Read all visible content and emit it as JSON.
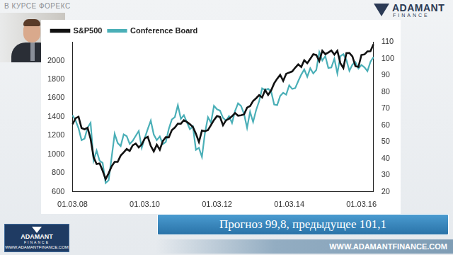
{
  "page": {
    "header": "В КУРСЕ ФОРЕКС",
    "logo_top": {
      "name": "ADAMANT",
      "sub": "FINANCE"
    },
    "logo_bottom": {
      "name": "ADAMANT",
      "sub": "FINANCE",
      "url": "WWW.ADAMANTFINANCE.COM"
    },
    "caption": "Прогноз 99,8, предыдущее 101,1",
    "url": "WWW.ADAMANTFINANCE.COM"
  },
  "chart_data": {
    "type": "line",
    "categories": [
      "01.03.08",
      null,
      null,
      null,
      null,
      null,
      null,
      null,
      null,
      null,
      null,
      null,
      null,
      null,
      null,
      null,
      null,
      null,
      null,
      null,
      null,
      null,
      null,
      null,
      "01.03.10",
      null,
      null,
      null,
      null,
      null,
      null,
      null,
      null,
      null,
      null,
      null,
      null,
      null,
      null,
      null,
      null,
      null,
      null,
      null,
      null,
      null,
      null,
      null,
      "01.03.12",
      null,
      null,
      null,
      null,
      null,
      null,
      null,
      null,
      null,
      null,
      null,
      null,
      null,
      null,
      null,
      null,
      null,
      null,
      null,
      null,
      null,
      null,
      null,
      "01.03.14",
      null,
      null,
      null,
      null,
      null,
      null,
      null,
      null,
      null,
      null,
      null,
      null,
      null,
      null,
      null,
      null,
      null,
      null,
      null,
      null,
      null,
      null,
      null,
      "01.03.16",
      null,
      null,
      null,
      null
    ],
    "series": [
      {
        "name": "S&P500",
        "color": "#111111",
        "line_style": "solid",
        "values": [
          1320,
          1385,
          1400,
          1280,
          1267,
          1283,
          1165,
          968,
          896,
          903,
          825,
          735,
          798,
          873,
          919,
          919,
          987,
          1021,
          1057,
          1036,
          1096,
          1115,
          1074,
          1104,
          1169,
          1187,
          1089,
          1031,
          1102,
          1049,
          1141,
          1183,
          1181,
          1258,
          1286,
          1327,
          1326,
          1364,
          1345,
          1321,
          1292,
          1219,
          1131,
          1253,
          1247,
          1258,
          1312,
          1366,
          1408,
          1398,
          1310,
          1362,
          1379,
          1406,
          1441,
          1412,
          1416,
          1426,
          1498,
          1515,
          1569,
          1598,
          1631,
          1606,
          1686,
          1633,
          1682,
          1757,
          1806,
          1848,
          1783,
          1859,
          1872,
          1884,
          1924,
          1960,
          1931,
          2003,
          1972,
          2018,
          2068,
          2059,
          1995,
          2105,
          2068,
          2086,
          2107,
          2063,
          2104,
          1972,
          1920,
          2079,
          2080,
          2044,
          1940,
          1932,
          2060,
          2065,
          2097,
          2099,
          2174
        ]
      },
      {
        "name": "Conference Board",
        "color": "#4aafb7",
        "line_style": "solid",
        "axis": "y2",
        "values": [
          65.9,
          62.8,
          58.1,
          51.0,
          51.9,
          58.5,
          61.4,
          38.8,
          44.7,
          38.6,
          37.4,
          25.3,
          26.9,
          40.8,
          54.8,
          49.3,
          47.4,
          54.5,
          53.4,
          48.7,
          50.6,
          53.6,
          56.5,
          46.4,
          52.3,
          57.7,
          62.7,
          54.3,
          51.0,
          53.2,
          48.6,
          49.9,
          57.8,
          63.4,
          64.8,
          72.0,
          63.8,
          66.0,
          61.7,
          57.6,
          59.2,
          45.2,
          46.4,
          40.9,
          55.2,
          64.8,
          61.5,
          71.6,
          69.5,
          68.7,
          64.4,
          62.7,
          65.4,
          61.3,
          68.4,
          73.1,
          71.5,
          66.7,
          58.4,
          68.0,
          61.9,
          69.0,
          74.3,
          82.1,
          81.0,
          81.8,
          80.2,
          72.4,
          72.0,
          77.5,
          79.4,
          78.3,
          83.9,
          81.7,
          82.2,
          86.4,
          90.3,
          93.4,
          89.0,
          94.1,
          91.0,
          93.1,
          103.8,
          98.8,
          101.4,
          94.3,
          94.6,
          99.8,
          91.0,
          101.3,
          102.6,
          99.1,
          92.6,
          96.3,
          97.8,
          94.0,
          96.1,
          94.7,
          92.4,
          98.0,
          100.8
        ]
      }
    ],
    "ylim": [
      600,
      2200
    ],
    "yticks": [
      600,
      800,
      1000,
      1200,
      1400,
      1600,
      1800,
      2000
    ],
    "y2lim": [
      20,
      110
    ],
    "y2ticks": [
      20,
      30,
      40,
      50,
      60,
      70,
      80,
      90,
      100,
      110
    ],
    "grid": false,
    "legend": "top-left"
  }
}
